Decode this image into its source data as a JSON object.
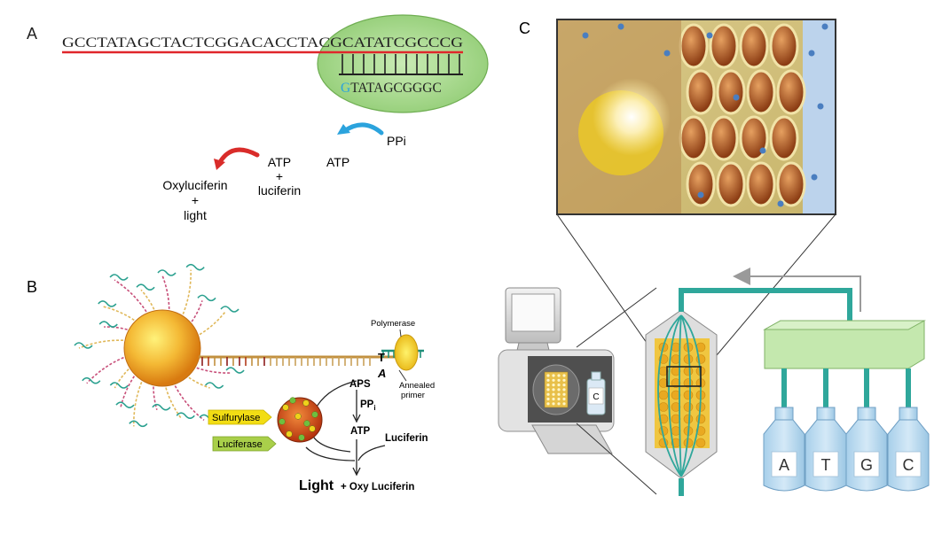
{
  "panels": {
    "a": {
      "label": "A",
      "template_seq": "GCCTATAGCTACTCGGACACCTACGCATATCGCCCG",
      "primer_first_base": "G",
      "primer_rest": "TATAGCGGGC",
      "ppi": "PPi",
      "atp": "ATP",
      "atp2": "ATP",
      "plus": "+",
      "luciferin": "luciferin",
      "oxyluciferin": "Oxyluciferin",
      "plus2": "+",
      "light": "light"
    },
    "b": {
      "label": "B",
      "polymerase": "Polymerase",
      "annealed1": "Annealed",
      "annealed2": "primer",
      "base_t": "T",
      "base_a": "A",
      "aps": "APS",
      "ppi": "PP",
      "ppi_sub": "i",
      "atp": "ATP",
      "luciferin": "Luciferin",
      "sulfurylase": "Sulfurylase",
      "luciferase": "Luciferase",
      "light": "Light",
      "oxy": "+ Oxy Luciferin"
    },
    "c": {
      "label": "C",
      "bottle_small": "C",
      "bottles": [
        "A",
        "T",
        "G",
        "C"
      ]
    }
  },
  "colors": {
    "red_strand": "#e0262b",
    "green_ellipse": "#9fd386",
    "blue_arrow": "#2ba3dd",
    "red_arrow": "#d92c2a",
    "teal_tube": "#2fa79b",
    "manifold": "#b9e3a3",
    "bottle": "#bcdcf1",
    "bead_orange": "#f0b43a",
    "highlight_first_base": "#2ba3dd"
  }
}
